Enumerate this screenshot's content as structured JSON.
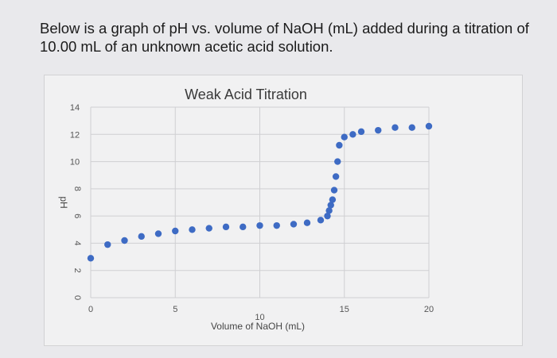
{
  "question": {
    "line1": "Below is a graph of pH vs. volume of NaOH (mL) added during a titration of",
    "line2": "10.00 mL of an unknown acetic acid solution."
  },
  "chart_data": {
    "type": "scatter",
    "title": "Weak Acid Titration",
    "xlabel": "Volume of NaOH (mL)",
    "ylabel": "pH",
    "xlim": [
      0,
      20
    ],
    "ylim": [
      0,
      14
    ],
    "x_ticks": [
      "0",
      "5",
      "10",
      "15",
      "20"
    ],
    "y_ticks": [
      "0",
      "2",
      "4",
      "6",
      "8",
      "10",
      "12",
      "14"
    ],
    "grid": true,
    "marker_color": "#3e6bc4",
    "series": [
      {
        "x": [
          0,
          1,
          2,
          3,
          4,
          5,
          6,
          7,
          8,
          9,
          10,
          11,
          12,
          12.8,
          13.6,
          14.0,
          14.1,
          14.2,
          14.3,
          14.4,
          14.5,
          14.6,
          14.7,
          15.0,
          15.5,
          16.0,
          17.0,
          18.0,
          19.0,
          20.0
        ],
        "y": [
          2.9,
          3.9,
          4.2,
          4.5,
          4.7,
          4.9,
          5.0,
          5.1,
          5.2,
          5.2,
          5.3,
          5.3,
          5.4,
          5.5,
          5.7,
          6.0,
          6.4,
          6.8,
          7.2,
          7.9,
          8.9,
          10.0,
          11.2,
          11.8,
          12.0,
          12.2,
          12.3,
          12.5,
          12.5,
          12.6
        ]
      }
    ]
  }
}
